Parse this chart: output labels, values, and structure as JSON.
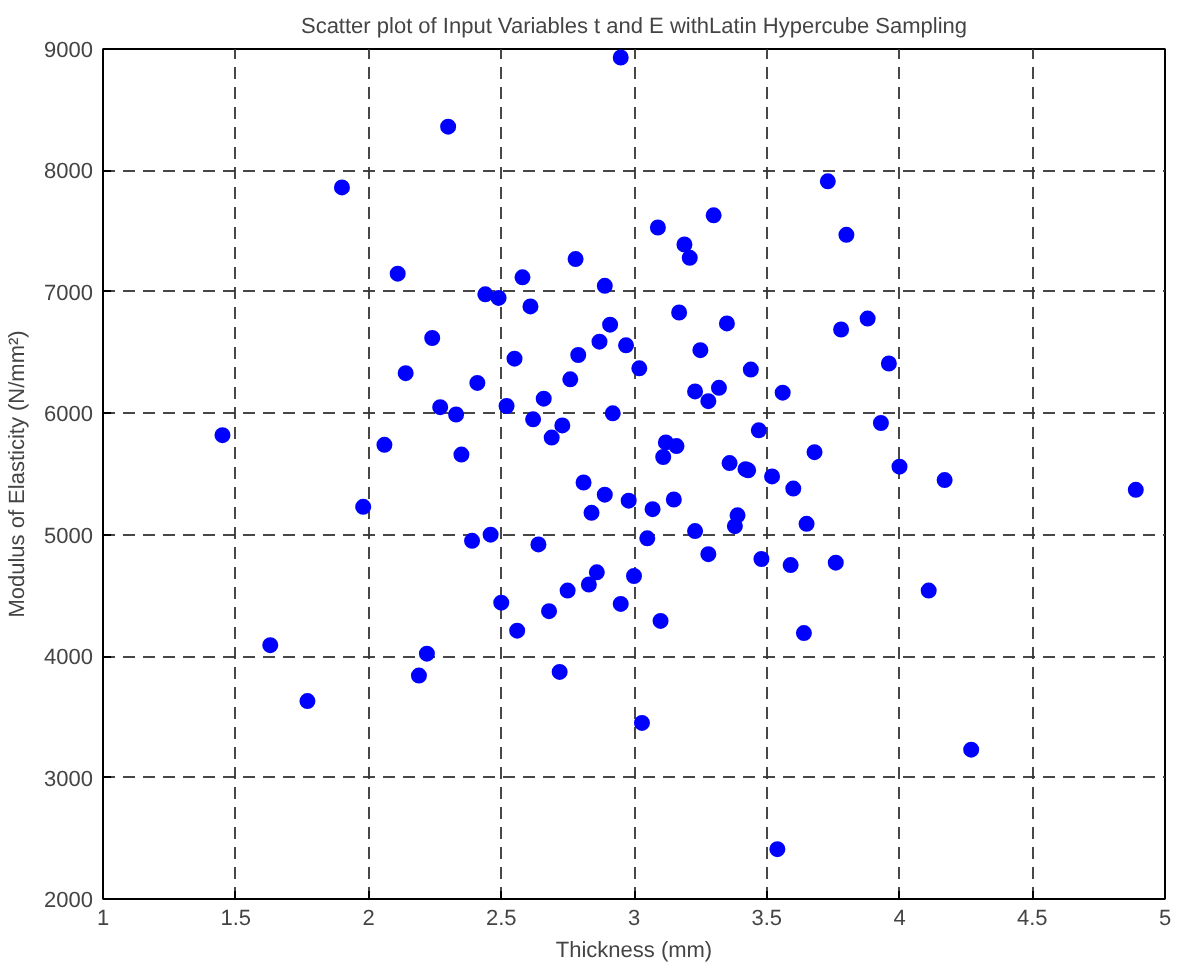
{
  "chart_data": {
    "type": "scatter",
    "title": "Scatter plot of Input Variables t and E withLatin Hypercube Sampling",
    "xlabel": "Thickness (mm)",
    "ylabel": "Modulus of Elasticity (N/mm²)",
    "xlim": [
      1,
      5
    ],
    "ylim": [
      2000,
      9000
    ],
    "xticks": [
      1,
      1.5,
      2,
      2.5,
      3,
      3.5,
      4,
      4.5,
      5
    ],
    "yticks": [
      2000,
      3000,
      4000,
      5000,
      6000,
      7000,
      8000,
      9000
    ],
    "grid": true,
    "marker": "circle",
    "series": [
      {
        "color": "#0000ff",
        "x": [
          1.45,
          1.63,
          1.77,
          1.9,
          1.98,
          2.06,
          2.11,
          2.14,
          2.19,
          2.22,
          2.24,
          2.27,
          2.3,
          2.33,
          2.35,
          2.39,
          2.41,
          2.44,
          2.46,
          2.49,
          2.5,
          2.52,
          2.55,
          2.56,
          2.58,
          2.61,
          2.62,
          2.64,
          2.66,
          2.68,
          2.69,
          2.72,
          2.73,
          2.75,
          2.76,
          2.78,
          2.79,
          2.81,
          2.83,
          2.84,
          2.86,
          2.87,
          2.89,
          2.89,
          2.91,
          2.92,
          2.95,
          2.95,
          2.97,
          2.98,
          3.0,
          3.02,
          3.03,
          3.05,
          3.07,
          3.09,
          3.1,
          3.11,
          3.12,
          3.15,
          3.16,
          3.17,
          3.19,
          3.21,
          3.23,
          3.23,
          3.25,
          3.28,
          3.28,
          3.3,
          3.32,
          3.35,
          3.36,
          3.38,
          3.39,
          3.42,
          3.43,
          3.44,
          3.47,
          3.48,
          3.52,
          3.54,
          3.56,
          3.6,
          3.59,
          3.64,
          3.65,
          3.68,
          3.73,
          3.76,
          3.78,
          3.8,
          3.88,
          3.93,
          3.96,
          4.0,
          4.11,
          4.17,
          4.27,
          4.89
        ],
        "values": [
          5820,
          4090,
          3630,
          7860,
          5230,
          5740,
          7150,
          6330,
          3840,
          4020,
          6620,
          6050,
          8360,
          5990,
          5660,
          4950,
          6250,
          6980,
          5000,
          6950,
          4440,
          6060,
          6450,
          4210,
          7120,
          6880,
          5950,
          4920,
          6120,
          4370,
          5800,
          3870,
          5900,
          4540,
          6280,
          7270,
          6480,
          5430,
          4590,
          5180,
          4690,
          6590,
          7050,
          5330,
          6730,
          6000,
          8930,
          4430,
          6560,
          5280,
          4660,
          6370,
          3450,
          4970,
          5210,
          7530,
          4290,
          5640,
          5760,
          5290,
          5730,
          6830,
          7390,
          7280,
          6180,
          5030,
          6520,
          4840,
          6100,
          7630,
          6210,
          6740,
          5590,
          5070,
          5160,
          5540,
          5530,
          6360,
          5860,
          4800,
          5480,
          2410,
          6170,
          5380,
          4750,
          4190,
          5090,
          5680,
          7910,
          4770,
          6690,
          7470,
          6780,
          5920,
          6410,
          5560,
          4540,
          5450,
          3230,
          5370
        ]
      }
    ]
  }
}
